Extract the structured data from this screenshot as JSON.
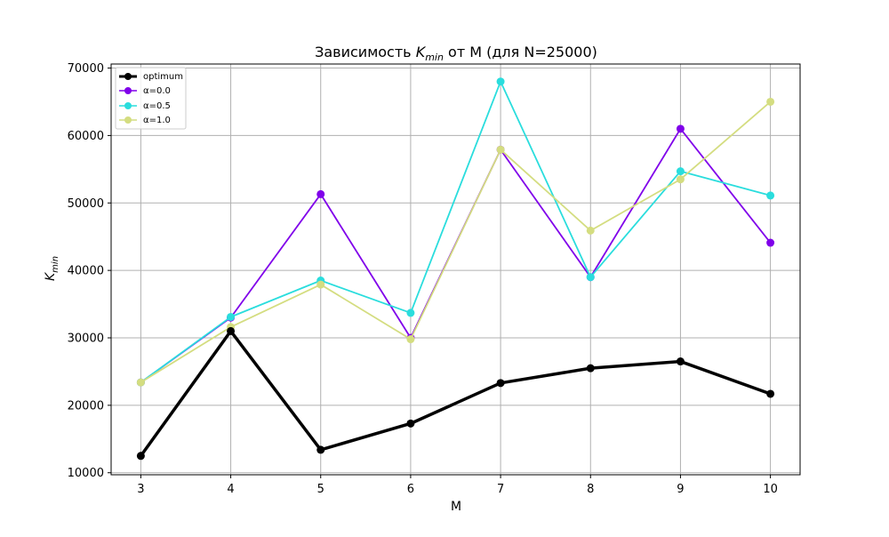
{
  "chart_data": {
    "type": "line",
    "title": "Зависимость K_min от M (для N=25000)",
    "title_parts": {
      "before": "Зависимость ",
      "k": "K",
      "sub": "min",
      "after": " от M (для N=25000)"
    },
    "xlabel": "M",
    "ylabel": {
      "k": "K",
      "sub": "min"
    },
    "x": [
      3,
      4,
      5,
      6,
      7,
      8,
      9,
      10
    ],
    "x_ticks": [
      "3",
      "4",
      "5",
      "6",
      "7",
      "8",
      "9",
      "10"
    ],
    "y_ticks": [
      "10000",
      "20000",
      "30000",
      "40000",
      "50000",
      "60000",
      "70000"
    ],
    "y_tick_values": [
      10000,
      20000,
      30000,
      40000,
      50000,
      60000,
      70000
    ],
    "xlim": [
      2.67,
      10.33
    ],
    "ylim": [
      9700,
      70600
    ],
    "grid": true,
    "legend_position": "top-left",
    "series": [
      {
        "name": "optimum",
        "color": "#000000",
        "style": "bold",
        "values": [
          12500,
          31000,
          13400,
          17300,
          23300,
          25500,
          26500,
          21700
        ]
      },
      {
        "name": "α=0.0",
        "color": "#8000ea",
        "values": [
          23400,
          33000,
          51300,
          30000,
          57900,
          39000,
          61000,
          44100
        ]
      },
      {
        "name": "α=0.5",
        "color": "#2adddd",
        "values": [
          23400,
          33100,
          38500,
          33700,
          68000,
          39000,
          54700,
          51100
        ]
      },
      {
        "name": "α=1.0",
        "color": "#d4dd80",
        "values": [
          23400,
          31600,
          37900,
          29800,
          57900,
          45900,
          53500,
          65000
        ]
      }
    ]
  }
}
